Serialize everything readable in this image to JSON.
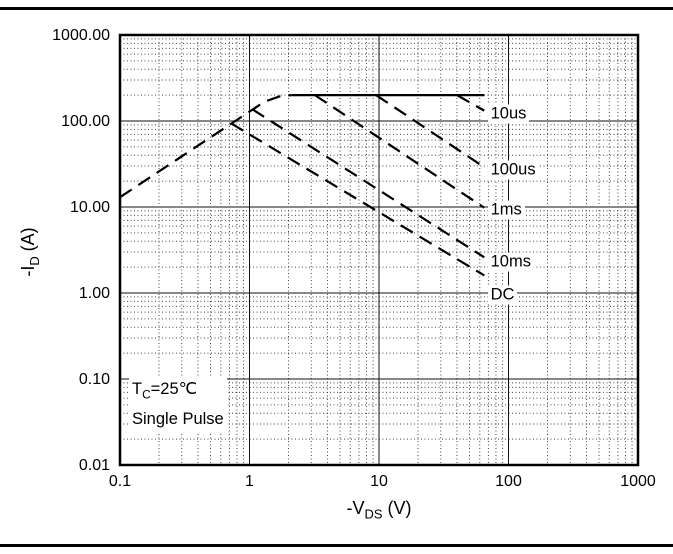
{
  "page": {
    "background": "#ffffff",
    "frame_color": "#000000"
  },
  "chart_data": {
    "type": "line",
    "title": "",
    "x_scale": "log",
    "y_scale": "log",
    "xlim": [
      0.1,
      1000
    ],
    "ylim": [
      0.01,
      1000
    ],
    "xlabel": {
      "prefix": "-V",
      "sub": "DS",
      "suffix": " (V)"
    },
    "ylabel": {
      "prefix": "-I",
      "sub": "D",
      "suffix": " (A)"
    },
    "x_ticks": [
      {
        "v": 0.1,
        "label": "0.1"
      },
      {
        "v": 1,
        "label": "1"
      },
      {
        "v": 10,
        "label": "10"
      },
      {
        "v": 100,
        "label": "100"
      },
      {
        "v": 1000,
        "label": "1000"
      }
    ],
    "y_ticks": [
      {
        "v": 0.01,
        "label": "0.01"
      },
      {
        "v": 0.1,
        "label": "0.10"
      },
      {
        "v": 1,
        "label": "1.00"
      },
      {
        "v": 10,
        "label": "10.00"
      },
      {
        "v": 100,
        "label": "100.00"
      },
      {
        "v": 1000,
        "label": "1000.00"
      }
    ],
    "grid": {
      "major": "solid",
      "minor": "dotted"
    },
    "line_color": "#000000",
    "annotation": {
      "line1": {
        "prefix": "T",
        "sub": "C",
        "suffix": "=25℃"
      },
      "line2": "Single Pulse"
    },
    "series": [
      {
        "name": "pulse-current-limit",
        "label": "",
        "style": "solid",
        "points": [
          [
            2.1,
            200
          ],
          [
            65,
            200
          ]
        ]
      },
      {
        "name": "rdson-limit-line",
        "label": "",
        "style": "dashed",
        "points": [
          [
            0.1,
            13
          ],
          [
            1.3,
            167
          ],
          [
            1.7,
            193
          ],
          [
            2.1,
            200
          ]
        ]
      },
      {
        "name": "t-10us",
        "label": "10us",
        "style": "dashed",
        "points": [
          [
            40,
            200
          ],
          [
            65,
            132
          ]
        ],
        "label_at": [
          69,
          120
        ]
      },
      {
        "name": "t-100us",
        "label": "100us",
        "style": "dashed",
        "points": [
          [
            9.5,
            200
          ],
          [
            65,
            29
          ]
        ],
        "label_at": [
          69,
          27
        ]
      },
      {
        "name": "t-1ms",
        "label": "1ms",
        "style": "dashed",
        "points": [
          [
            3.2,
            200
          ],
          [
            65,
            9.8
          ]
        ],
        "label_at": [
          69,
          9.3
        ]
      },
      {
        "name": "t-10ms",
        "label": "10ms",
        "style": "dashed",
        "points": [
          [
            1.05,
            137
          ],
          [
            65,
            2.6
          ]
        ],
        "label_at": [
          69,
          2.3
        ]
      },
      {
        "name": "dc",
        "label": "DC",
        "style": "dashed",
        "points": [
          [
            0.72,
            94
          ],
          [
            65,
            1.6
          ]
        ],
        "label_at": [
          69,
          0.95
        ]
      }
    ]
  }
}
